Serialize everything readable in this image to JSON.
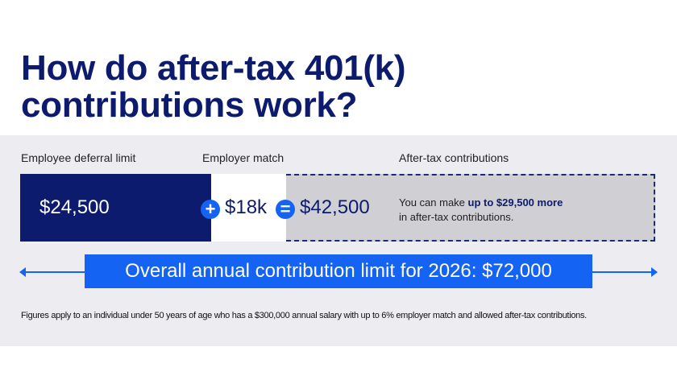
{
  "title": {
    "line1": "How do after-tax 401(k)",
    "line2": "contributions work?"
  },
  "labels": {
    "employee": "Employee deferral limit",
    "employer": "Employer match",
    "after_tax": "After-tax contributions"
  },
  "values": {
    "employee": "$24,500",
    "employer": "$18k",
    "total": "$42,500"
  },
  "operators": {
    "plus": "+",
    "equals": "="
  },
  "note": {
    "prefix": "You can make ",
    "highlight": "up to $29,500 more",
    "suffix": "in after-tax contributions."
  },
  "banner": "Overall annual contribution limit for 2026: $72,000",
  "footnote": "Figures apply to an individual under 50 years of age who has a $300,000 annual salary with up to 6% employer match and allowed after-tax contributions.",
  "colors": {
    "navy": "#0d1b6e",
    "blue": "#1463f3",
    "gray": "#cfcfd4",
    "panel": "#ededf1"
  }
}
